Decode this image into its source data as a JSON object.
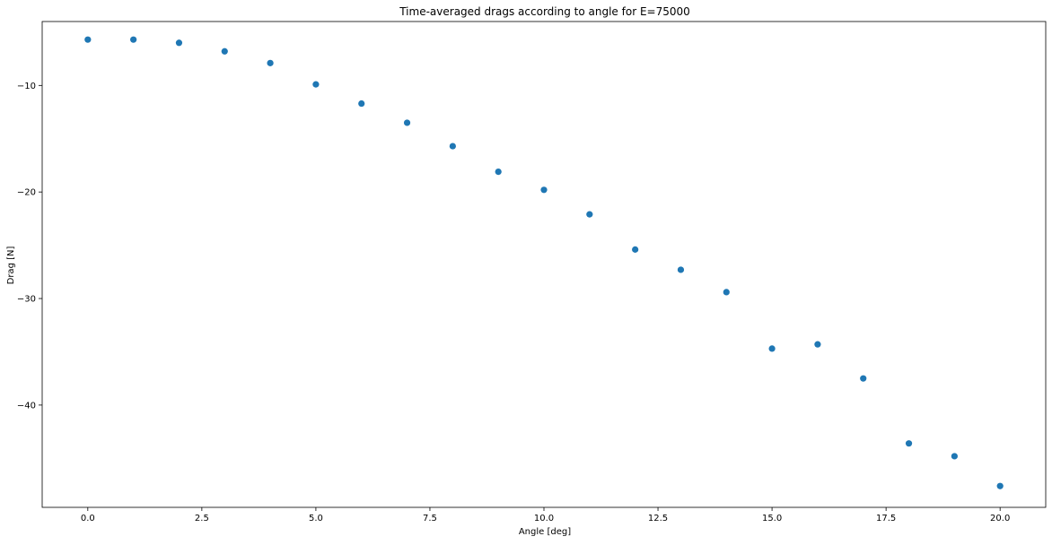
{
  "chart_data": {
    "type": "scatter",
    "title": "Time-averaged drags according to angle for E=75000",
    "xlabel": "Angle [deg]",
    "ylabel": "Drag [N]",
    "xlim": [
      -1.0,
      21.0
    ],
    "ylim": [
      -49.6,
      -4.0
    ],
    "xticks": [
      0.0,
      2.5,
      5.0,
      7.5,
      10.0,
      12.5,
      15.0,
      17.5,
      20.0
    ],
    "xtick_labels": [
      "0.0",
      "2.5",
      "5.0",
      "7.5",
      "10.0",
      "12.5",
      "15.0",
      "17.5",
      "20.0"
    ],
    "yticks": [
      -10,
      -20,
      -30,
      -40
    ],
    "ytick_labels": [
      "−10",
      "−20",
      "−30",
      "−40"
    ],
    "grid": false,
    "marker_color": "#1f77b4",
    "x": [
      0,
      1,
      2,
      3,
      4,
      5,
      6,
      7,
      8,
      9,
      10,
      11,
      12,
      13,
      14,
      15,
      16,
      17,
      18,
      19,
      20
    ],
    "y": [
      -5.7,
      -5.7,
      -6.0,
      -6.8,
      -7.9,
      -9.9,
      -11.7,
      -13.5,
      -15.7,
      -18.1,
      -19.8,
      -22.1,
      -25.4,
      -27.3,
      -29.4,
      -34.7,
      -34.3,
      -37.5,
      -43.6,
      -44.8,
      -47.6
    ]
  }
}
